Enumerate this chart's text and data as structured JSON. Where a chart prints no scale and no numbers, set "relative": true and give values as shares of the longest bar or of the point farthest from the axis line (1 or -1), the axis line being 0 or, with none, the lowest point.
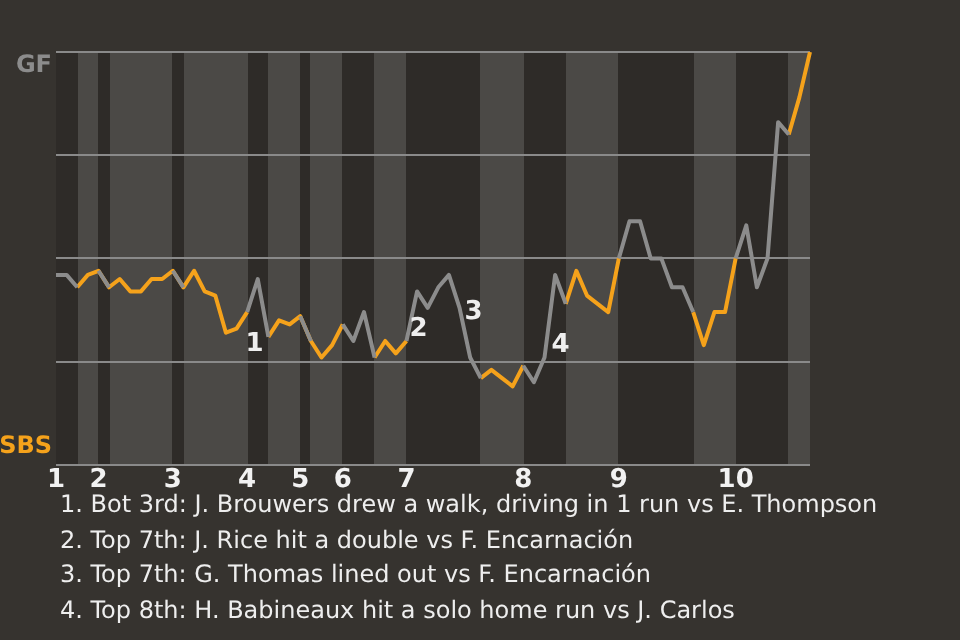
{
  "chart_data": {
    "type": "line",
    "relative": true,
    "categories": [
      "1",
      null,
      null,
      null,
      "2",
      null,
      null,
      null,
      null,
      null,
      null,
      "3",
      null,
      null,
      null,
      null,
      null,
      null,
      "4",
      null,
      null,
      null,
      null,
      "5",
      null,
      null,
      null,
      "6",
      null,
      null,
      null,
      null,
      null,
      "7",
      null,
      null,
      null,
      null,
      null,
      null,
      null,
      null,
      null,
      null,
      "8",
      null,
      null,
      null,
      null,
      null,
      null,
      null,
      null,
      "9",
      null,
      null,
      null,
      null,
      null,
      null,
      null,
      null,
      null,
      null,
      "10",
      null,
      null,
      null,
      null,
      null,
      null,
      null
    ],
    "series": [
      {
        "color": "#8c8c8c",
        "values": [
          0.46,
          0.46,
          0.43,
          null,
          0.47,
          0.43,
          null,
          null,
          null,
          null,
          null,
          0.47,
          0.43,
          null,
          null,
          null,
          null,
          null,
          0.37,
          0.45,
          0.31,
          null,
          null,
          0.36,
          0.3,
          null,
          null,
          0.34,
          0.3,
          0.37,
          0.26,
          null,
          null,
          0.3,
          0.42,
          0.38,
          0.43,
          0.46,
          0.38,
          0.26,
          0.21,
          null,
          null,
          null,
          0.24,
          0.2,
          0.26,
          0.46,
          0.39,
          null,
          null,
          null,
          null,
          0.5,
          0.59,
          0.59,
          0.5,
          0.5,
          0.43,
          0.43,
          0.37,
          null,
          null,
          null,
          0.5,
          0.58,
          0.43,
          0.5,
          0.83,
          0.8,
          null,
          null
        ]
      },
      {
        "color": "#f5a21b",
        "values": [
          null,
          null,
          0.43,
          0.46,
          0.47,
          0.43,
          0.45,
          0.42,
          0.42,
          0.45,
          0.45,
          0.47,
          0.43,
          0.47,
          0.42,
          0.41,
          0.32,
          0.33,
          0.37,
          null,
          0.31,
          0.35,
          0.34,
          0.36,
          0.3,
          0.26,
          0.29,
          0.34,
          null,
          null,
          0.26,
          0.3,
          0.27,
          0.3,
          null,
          null,
          null,
          null,
          null,
          null,
          0.21,
          0.23,
          0.21,
          0.19,
          0.24,
          null,
          null,
          null,
          0.39,
          0.47,
          0.41,
          0.39,
          0.37,
          0.5,
          null,
          null,
          null,
          null,
          null,
          null,
          0.37,
          0.29,
          0.37,
          0.37,
          0.5,
          null,
          null,
          null,
          null,
          0.8,
          0.89,
          1
        ]
      }
    ],
    "grid": "y",
    "marker": "none",
    "line_style": "solid",
    "legend": false,
    "annotations": [
      "GF",
      "SBS",
      "1",
      "2",
      "3",
      "4",
      "1. Bot 3rd: J. Brouwers drew a walk, driving in 1 run vs E. Thompson",
      "2. Top 7th: J. Rice hit a double vs F. Encarnación",
      "3. Top 7th: G. Thomas lined out vs F. Encarnación",
      "4. Top 8th: H. Babineaux hit a solo home run vs J. Carlos"
    ]
  }
}
